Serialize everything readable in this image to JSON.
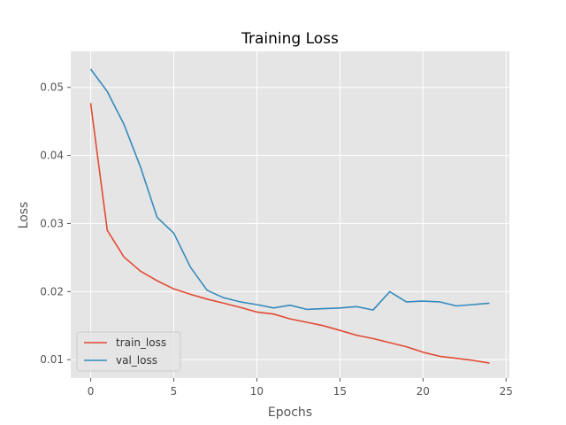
{
  "chart_data": {
    "type": "line",
    "title": "Training Loss",
    "xlabel": "Epochs",
    "ylabel": "Loss",
    "xlim": [
      -1.2,
      25.2
    ],
    "ylim": [
      0.0073,
      0.0553
    ],
    "xticks": [
      0,
      5,
      10,
      15,
      20,
      25
    ],
    "yticks": [
      0.01,
      0.02,
      0.03,
      0.04,
      0.05
    ],
    "ytick_labels": [
      "0.01",
      "0.02",
      "0.03",
      "0.04",
      "0.05"
    ],
    "grid": true,
    "legend_position": "lower-left",
    "x": [
      0,
      1,
      2,
      3,
      4,
      5,
      6,
      7,
      8,
      9,
      10,
      11,
      12,
      13,
      14,
      15,
      16,
      17,
      18,
      19,
      20,
      21,
      22,
      23,
      24
    ],
    "series": [
      {
        "name": "train_loss",
        "color": "#e24a33",
        "values": [
          0.0477,
          0.029,
          0.0251,
          0.023,
          0.0216,
          0.0204,
          0.0196,
          0.0189,
          0.0183,
          0.0177,
          0.017,
          0.0167,
          0.016,
          0.0155,
          0.015,
          0.0143,
          0.0136,
          0.0131,
          0.0125,
          0.0119,
          0.0111,
          0.0105,
          0.0102,
          0.0099,
          0.0095
        ]
      },
      {
        "name": "val_loss",
        "color": "#348abd",
        "values": [
          0.0527,
          0.0494,
          0.0446,
          0.0383,
          0.0309,
          0.0286,
          0.0236,
          0.0202,
          0.0191,
          0.0185,
          0.0181,
          0.0176,
          0.018,
          0.0174,
          0.0175,
          0.0176,
          0.0178,
          0.0173,
          0.02,
          0.0185,
          0.0186,
          0.0185,
          0.0179,
          0.0181,
          0.0183
        ]
      }
    ],
    "background_color": "#e5e5e5",
    "grid_color": "#ffffff"
  }
}
